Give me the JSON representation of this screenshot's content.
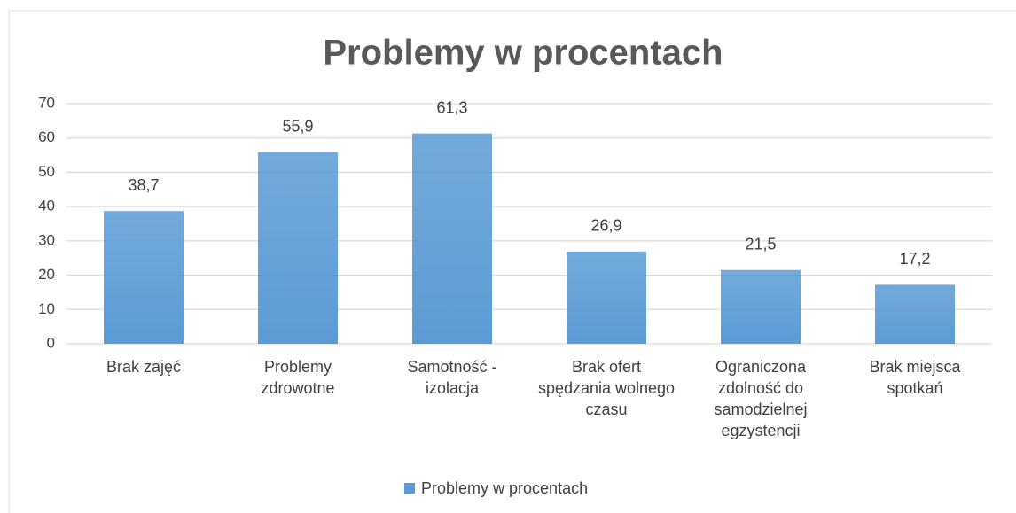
{
  "chart_data": {
    "type": "bar",
    "title": "Problemy w procentach",
    "categories": [
      "Brak zajęć",
      "Problemy zdrowotne",
      "Samotność - izolacja",
      "Brak ofert spędzania wolnego czasu",
      "Ograniczona zdolność do samodzielnej egzystencji",
      "Brak miejsca spotkań"
    ],
    "series": [
      {
        "name": "Problemy w procentach",
        "color": "#5b9bd5",
        "values": [
          38.7,
          55.9,
          61.3,
          26.9,
          21.5,
          17.2
        ],
        "value_labels": [
          "38,7",
          "55,9",
          "61,3",
          "26,9",
          "21,5",
          "17,2"
        ]
      }
    ],
    "ylim": [
      0,
      70
    ],
    "yticks": [
      0,
      10,
      20,
      30,
      40,
      50,
      60,
      70
    ],
    "grid": true,
    "legend": "bottom"
  }
}
